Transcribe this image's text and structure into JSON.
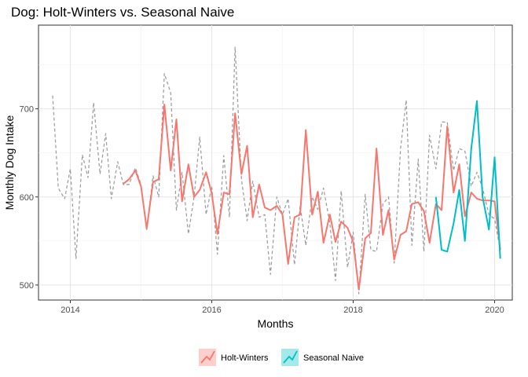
{
  "chart_data": {
    "type": "line",
    "title": "Dog: Holt-Winters vs. Seasonal Naive",
    "xlabel": "Months",
    "ylabel": "Monthly Dog Intake",
    "xlim": [
      2013.55,
      2020.25
    ],
    "ylim": [
      483,
      795
    ],
    "x_ticks": [
      2014,
      2016,
      2018,
      2020
    ],
    "y_ticks": [
      500,
      600,
      700
    ],
    "grid": true,
    "legend_position": "bottom",
    "colors": {
      "observed": "#999999",
      "holt_winters": "#F8766D",
      "seasonal_naive": "#00BFC4"
    },
    "series": [
      {
        "key": "observed",
        "style": "dashed",
        "x": [
          2013.75,
          2013.83,
          2013.92,
          2014.0,
          2014.08,
          2014.17,
          2014.25,
          2014.33,
          2014.42,
          2014.5,
          2014.58,
          2014.67,
          2014.75,
          2014.83,
          2014.92,
          2015.0,
          2015.08,
          2015.17,
          2015.25,
          2015.33,
          2015.42,
          2015.5,
          2015.58,
          2015.67,
          2015.75,
          2015.83,
          2015.92,
          2016.0,
          2016.08,
          2016.17,
          2016.25,
          2016.33,
          2016.42,
          2016.5,
          2016.58,
          2016.67,
          2016.75,
          2016.83,
          2016.92,
          2017.0,
          2017.08,
          2017.17,
          2017.25,
          2017.33,
          2017.42,
          2017.5,
          2017.58,
          2017.67,
          2017.75,
          2017.83,
          2017.92,
          2018.0,
          2018.08,
          2018.17,
          2018.25,
          2018.33,
          2018.42,
          2018.5,
          2018.58,
          2018.67,
          2018.75,
          2018.83,
          2018.92,
          2019.0,
          2019.08,
          2019.17,
          2019.25,
          2019.33,
          2019.42,
          2019.5,
          2019.58,
          2019.67,
          2019.75,
          2019.83,
          2019.92,
          2020.0,
          2020.08
        ],
        "values": [
          715,
          610,
          598,
          632,
          530,
          648,
          622,
          707,
          626,
          672,
          598,
          640,
          614,
          614,
          633,
          614,
          563,
          624,
          600,
          740,
          718,
          585,
          628,
          558,
          600,
          668,
          580,
          612,
          535,
          647,
          577,
          770,
          620,
          573,
          618,
          577,
          580,
          512,
          600,
          580,
          598,
          523,
          590,
          545,
          600,
          586,
          610,
          570,
          505,
          607,
          520,
          560,
          490,
          603,
          540,
          538,
          592,
          600,
          525,
          655,
          710,
          545,
          643,
          538,
          670,
          632,
          685,
          685,
          630,
          655,
          652,
          612,
          628,
          610,
          580,
          575,
          540
        ]
      },
      {
        "key": "holt_winters",
        "name": "Holt-Winters",
        "style": "solid",
        "x": [
          2014.75,
          2014.83,
          2014.92,
          2015.0,
          2015.08,
          2015.17,
          2015.25,
          2015.33,
          2015.42,
          2015.5,
          2015.58,
          2015.67,
          2015.75,
          2015.83,
          2015.92,
          2016.0,
          2016.08,
          2016.17,
          2016.25,
          2016.33,
          2016.42,
          2016.5,
          2016.58,
          2016.67,
          2016.75,
          2016.83,
          2016.92,
          2017.0,
          2017.08,
          2017.17,
          2017.25,
          2017.33,
          2017.42,
          2017.5,
          2017.58,
          2017.67,
          2017.75,
          2017.83,
          2017.92,
          2018.0,
          2018.08,
          2018.17,
          2018.25,
          2018.33,
          2018.42,
          2018.5,
          2018.58,
          2018.67,
          2018.75,
          2018.83,
          2018.92,
          2019.0,
          2019.08,
          2019.17,
          2019.25,
          2019.33,
          2019.42,
          2019.5,
          2019.58,
          2019.67,
          2019.75,
          2019.83,
          2019.92,
          2020.0,
          2020.08
        ],
        "values": [
          615,
          620,
          630,
          612,
          564,
          617,
          620,
          705,
          630,
          688,
          595,
          637,
          600,
          608,
          628,
          604,
          558,
          605,
          603,
          695,
          626,
          658,
          577,
          614,
          588,
          585,
          590,
          580,
          524,
          577,
          580,
          676,
          580,
          606,
          548,
          580,
          549,
          572,
          565,
          549,
          495,
          553,
          559,
          655,
          557,
          585,
          529,
          557,
          561,
          592,
          594,
          584,
          548,
          592,
          585,
          680,
          605,
          637,
          578,
          605,
          598,
          596,
          596,
          595,
          540
        ]
      },
      {
        "key": "seasonal_naive",
        "name": "Seasonal Naive",
        "style": "solid",
        "x": [
          2019.17,
          2019.25,
          2019.33,
          2019.42,
          2019.5,
          2019.58,
          2019.67,
          2019.75,
          2019.83,
          2019.92,
          2020.0,
          2020.08
        ],
        "values": [
          600,
          540,
          538,
          570,
          608,
          550,
          655,
          709,
          600,
          563,
          645,
          530
        ]
      }
    ],
    "legend": [
      {
        "key": "holt_winters",
        "label": "Holt-Winters"
      },
      {
        "key": "seasonal_naive",
        "label": "Seasonal Naive"
      }
    ]
  }
}
